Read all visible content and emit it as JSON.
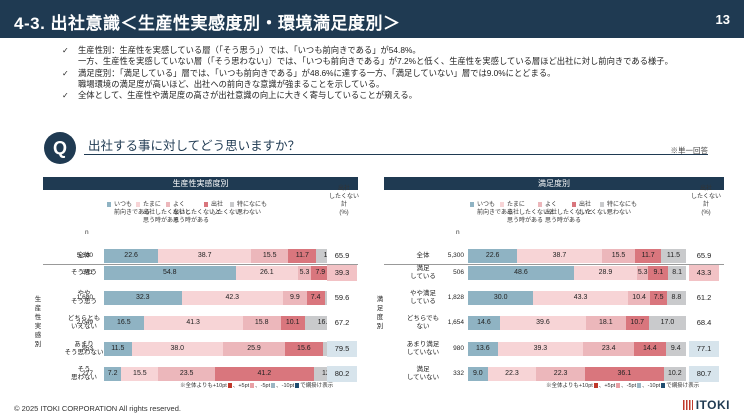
{
  "header": {
    "title": "4-3. 出社意識＜生産性実感度別・環境満足度別＞",
    "page_number": "13"
  },
  "bullets": [
    "生産性別：生産性を実感している層（「そう思う」）では、「いつも前向きである」が54.8%。",
    "一方、生産性を実感していない層（「そう思わない」）では、「いつも前向きである」が7.2%と低く、生産性を実感している層ほど出社に対し前向きである様子。",
    "満足度別：「満足している」層では、「いつも前向きである」が48.6%に達する一方、「満足していない」層では9.0%にとどまる。",
    "職場環境の満足度が高いほど、出社への前向きな意識が強まることを示している。",
    "全体として、生産性や満足度の高さが出社意識の向上に大きく寄与していることが窺える。"
  ],
  "bullet_check": "✓",
  "question": {
    "badge": "Q",
    "text": "出社する事に対してどう思いますか？",
    "note": "※単一回答"
  },
  "legend": [
    {
      "label": "いつも\n前向きである",
      "color": "#8fb3c3"
    },
    {
      "label": "たまに\n出社したくないと\n思う時がある",
      "color": "#f7d4d6"
    },
    {
      "label": "よく\n出社したくないと\n思う時がある",
      "color": "#ecb7bb"
    },
    {
      "label": "出社\nしたくない",
      "color": "#d9767d"
    },
    {
      "label": "特になにも\n思わない",
      "color": "#c9cacc"
    }
  ],
  "col_n": "n",
  "col_total": "出社\nしたくない\n計\n(%)",
  "overall_label": "全体",
  "footnote": {
    "prefix": "※全体よりも+10pt",
    "mid1": "、+5pt",
    "mid2": "、-5pt",
    "mid3": "、-10pt",
    "suffix": "で網掛け表示"
  },
  "footnote_colors": [
    "#c0392b",
    "#e8a0a5",
    "#9cb6c3",
    "#1f4d70"
  ],
  "tot_colors": {
    "high": "#f2c2c5",
    "low": "#d7e4ec",
    "none": "#ffffff"
  },
  "panels": [
    {
      "title": "生産性実感度別",
      "group_label": "生\n産\n性\n実\n感\n別",
      "overall": {
        "n": "5,300",
        "values": [
          22.6,
          38.7,
          15.5,
          11.7,
          11.5
        ],
        "total": "65.9",
        "hl": "none"
      },
      "rows": [
        {
          "label": "そう思う",
          "n": "341",
          "values": [
            54.8,
            26.1,
            5.3,
            7.9,
            5.9
          ],
          "total": "39.3",
          "hl": "high"
        },
        {
          "label": "やや\nそう思う",
          "n": "1,680",
          "values": [
            32.3,
            42.3,
            9.9,
            7.4,
            8.1
          ],
          "total": "59.6",
          "hl": "none"
        },
        {
          "label": "どちらとも\nいえない",
          "n": "2,049",
          "values": [
            16.5,
            41.3,
            15.8,
            10.1,
            16.3
          ],
          "total": "67.2",
          "hl": "none"
        },
        {
          "label": "あまり\nそう思わない",
          "n": "953",
          "values": [
            11.5,
            38.0,
            25.9,
            15.6,
            8.9
          ],
          "total": "79.5",
          "hl": "low"
        },
        {
          "label": "そう\n思わない",
          "n": "277",
          "values": [
            7.2,
            15.5,
            23.5,
            41.2,
            12.6
          ],
          "total": "80.2",
          "hl": "low"
        }
      ]
    },
    {
      "title": "満足度別",
      "group_label": "満\n足\n度\n別",
      "overall": {
        "n": "5,300",
        "values": [
          22.6,
          38.7,
          15.5,
          11.7,
          11.5
        ],
        "total": "65.9",
        "hl": "none"
      },
      "rows": [
        {
          "label": "満足\nしている",
          "n": "506",
          "values": [
            48.6,
            28.9,
            5.3,
            9.1,
            8.1
          ],
          "total": "43.3",
          "hl": "high"
        },
        {
          "label": "やや満足\nしている",
          "n": "1,828",
          "values": [
            30.0,
            43.3,
            10.4,
            7.5,
            8.8
          ],
          "total": "61.2",
          "hl": "none"
        },
        {
          "label": "どちらでも\nない",
          "n": "1,654",
          "values": [
            14.6,
            39.6,
            18.1,
            10.7,
            17.0
          ],
          "total": "68.4",
          "hl": "none"
        },
        {
          "label": "あまり満足\nしていない",
          "n": "980",
          "values": [
            13.6,
            39.3,
            23.4,
            14.4,
            9.4
          ],
          "total": "77.1",
          "hl": "low"
        },
        {
          "label": "満足\nしていない",
          "n": "332",
          "values": [
            9.0,
            22.3,
            22.3,
            36.1,
            10.2
          ],
          "total": "80.7",
          "hl": "low"
        }
      ]
    }
  ],
  "footer": "© 2025 ITOKI CORPORATION All rights reserved.",
  "logo": "ITOKI"
}
